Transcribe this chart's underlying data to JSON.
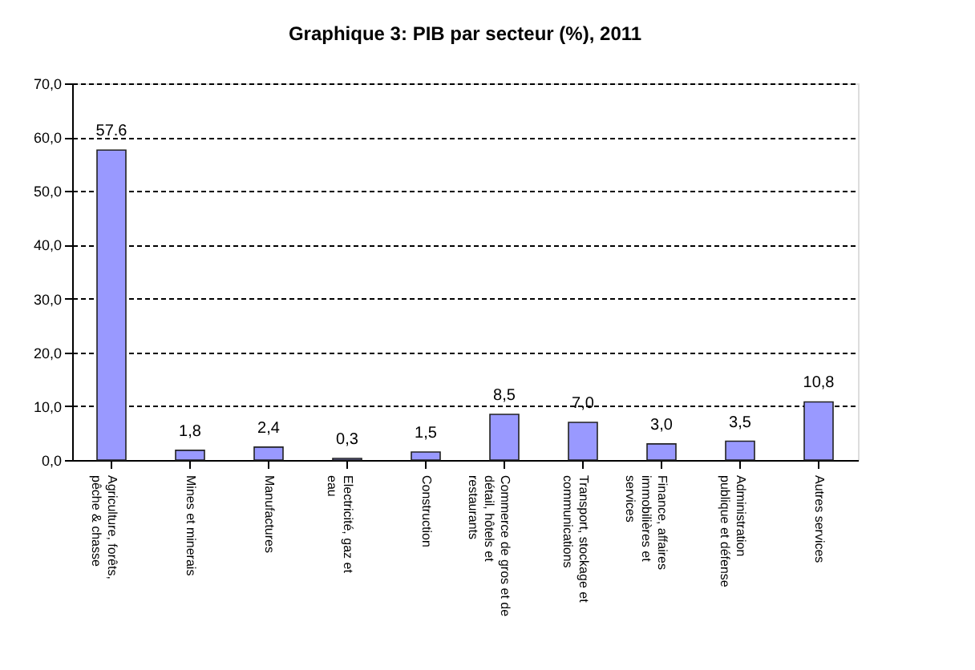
{
  "chart_data": {
    "type": "bar",
    "title": "Graphique 3: PIB par secteur (%),  2011",
    "categories": [
      "Agriculture, forêts, pêche & chasse",
      "Mines et minerais",
      "Manufactures",
      "Electricité, gaz et eau",
      "Construction",
      "Commerce de gros et de détail, hôtels et restaurants",
      "Transport, stockage et communications",
      "Finance, affaires immobilières et services",
      "Administration publique et défense",
      "Autres services"
    ],
    "values": [
      57.6,
      1.8,
      2.4,
      0.3,
      1.5,
      8.5,
      7.0,
      3.0,
      3.5,
      10.8
    ],
    "value_labels": [
      "57.6",
      "1,8",
      "2,4",
      "0,3",
      "1,5",
      "8,5",
      "7,0",
      "3,0",
      "3,5",
      "10,8"
    ],
    "color": "#9999ff",
    "ylim": [
      0,
      70
    ],
    "yticks": [
      {
        "value": 0,
        "label": "0,0"
      },
      {
        "value": 10,
        "label": "10,0"
      },
      {
        "value": 20,
        "label": "20,0"
      },
      {
        "value": 30,
        "label": "30,0"
      },
      {
        "value": 40,
        "label": "40,0"
      },
      {
        "value": 50,
        "label": "50,0"
      },
      {
        "value": 60,
        "label": "60,0"
      },
      {
        "value": 70,
        "label": "70,0"
      }
    ],
    "grid": "y"
  }
}
